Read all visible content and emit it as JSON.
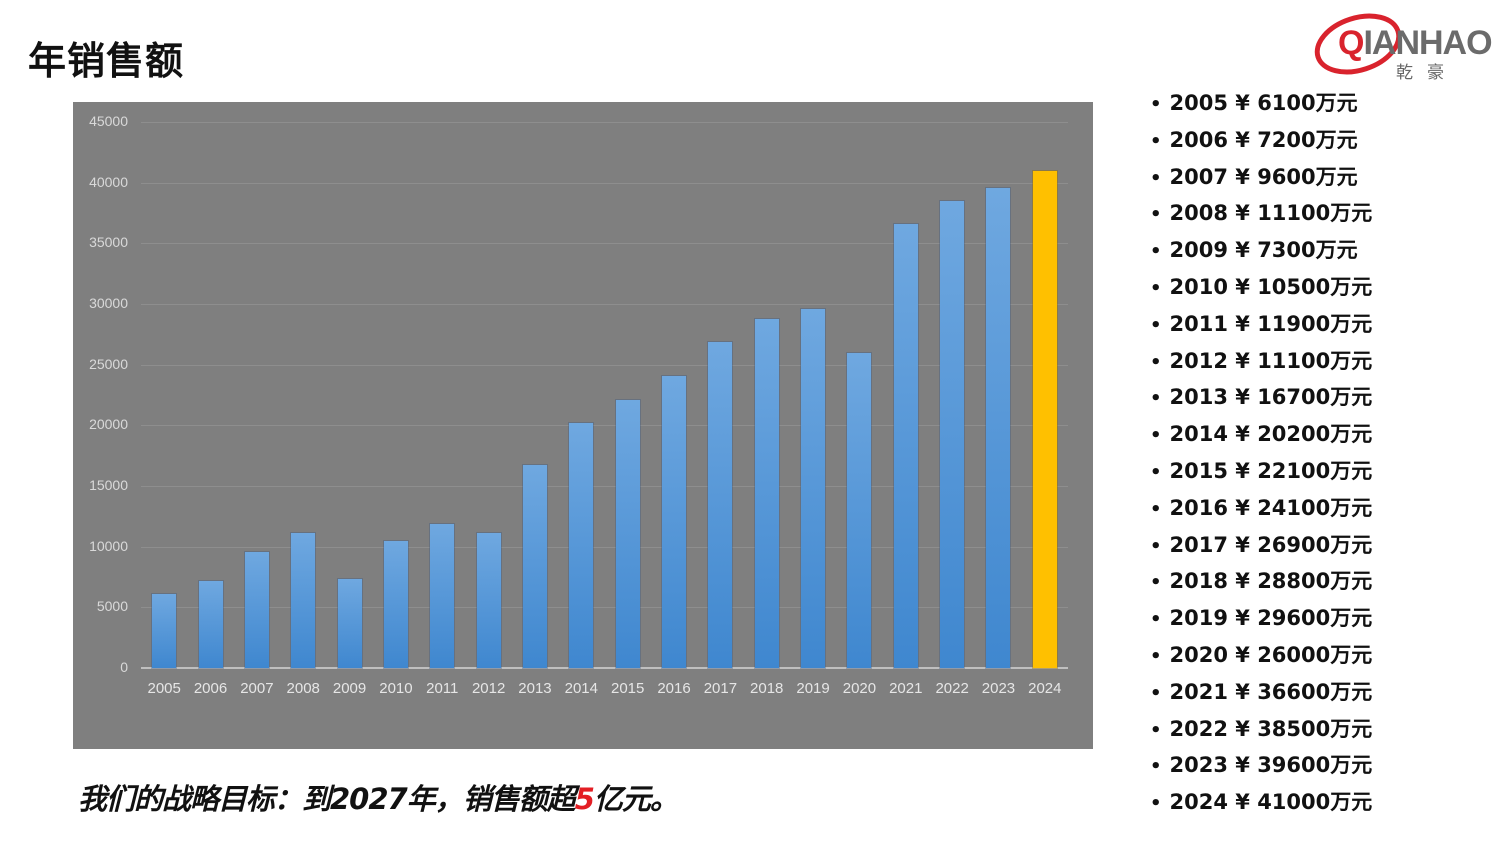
{
  "page": {
    "title": "年销售额",
    "logo": {
      "text_q": "Q",
      "text_rest": "IANHAO",
      "text_cn": "乾豪",
      "accent_color": "#d9232d"
    },
    "goal": {
      "prefix": "我们的战略目标：到2027年，销售额超",
      "highlight": "5",
      "suffix": "亿元。",
      "highlight_color": "#e31e24"
    }
  },
  "list": [
    "2005 ¥ 6100万元",
    "2006 ¥ 7200万元",
    "2007 ¥ 9600万元",
    "2008 ¥ 11100万元",
    "2009 ¥ 7300万元",
    "2010 ¥ 10500万元",
    "2011 ¥ 11900万元",
    "2012 ¥ 11100万元",
    "2013 ¥ 16700万元",
    "2014 ¥ 20200万元",
    "2015 ¥ 22100万元",
    "2016 ¥ 24100万元",
    "2017 ¥ 26900万元",
    "2018 ¥ 28800万元",
    "2019 ¥ 29600万元",
    "2020 ¥ 26000万元",
    "2021 ¥ 36600万元",
    "2022 ¥ 38500万元",
    "2023 ¥ 39600万元",
    "2024 ¥ 41000万元"
  ],
  "chart_data": {
    "type": "bar",
    "title": "年销售额",
    "xlabel": "",
    "ylabel": "",
    "unit": "万元",
    "categories": [
      "2005",
      "2006",
      "2007",
      "2008",
      "2009",
      "2010",
      "2011",
      "2012",
      "2013",
      "2014",
      "2015",
      "2016",
      "2017",
      "2018",
      "2019",
      "2020",
      "2021",
      "2022",
      "2023",
      "2024"
    ],
    "values": [
      6100,
      7200,
      9600,
      11100,
      7300,
      10500,
      11900,
      11100,
      16700,
      20200,
      22100,
      24100,
      26900,
      28800,
      29600,
      26000,
      36600,
      38500,
      39600,
      41000
    ],
    "yticks": [
      "0",
      "5000",
      "10000",
      "15000",
      "20000",
      "25000",
      "30000",
      "35000",
      "40000",
      "45000"
    ],
    "ylim": [
      0,
      45000
    ],
    "grid": true,
    "legend": "none",
    "background": "#7f7f7f",
    "bar_color": "#5b9bd5",
    "highlight_color": "#ffc000",
    "highlight_category": "2024"
  }
}
